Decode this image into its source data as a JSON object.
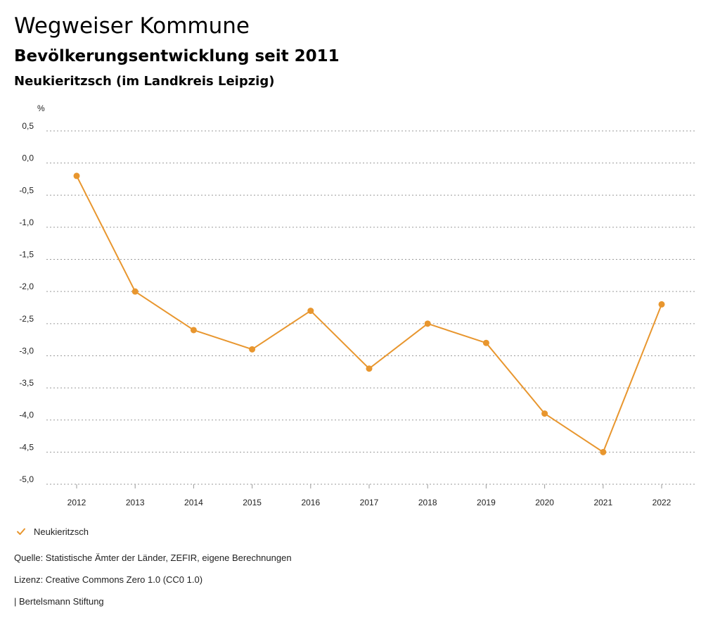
{
  "header": {
    "title": "Wegweiser Kommune",
    "subtitle": "Bevölkerungsentwicklung seit 2011",
    "region": "Neukieritzsch (im Landkreis Leipzig)"
  },
  "chart_data": {
    "type": "line",
    "title": "Bevölkerungsentwicklung seit 2011",
    "ylabel": "%",
    "xlabel": "",
    "x": [
      "2012",
      "2013",
      "2014",
      "2015",
      "2016",
      "2017",
      "2018",
      "2019",
      "2020",
      "2021",
      "2022"
    ],
    "series": [
      {
        "name": "Neukieritzsch",
        "color": "#e8962e",
        "values": [
          -0.2,
          -2.0,
          -2.6,
          -2.9,
          -2.3,
          -3.2,
          -2.5,
          -2.8,
          -3.9,
          -4.5,
          -2.2
        ]
      }
    ],
    "ylim": [
      -5.0,
      0.5
    ],
    "yticks": [
      0.5,
      0.0,
      -0.5,
      -1.0,
      -1.5,
      -2.0,
      -2.5,
      -3.0,
      -3.5,
      -4.0,
      -4.5,
      -5.0
    ],
    "ytick_labels": [
      "0,5",
      "0,0",
      "-0,5",
      "-1,0",
      "-1,5",
      "-2,0",
      "-2,5",
      "-3,0",
      "-3,5",
      "-4,0",
      "-4,5",
      "-5,0"
    ],
    "grid": true,
    "legend": "bottom-left"
  },
  "legend": {
    "icon": "check-icon",
    "label": "Neukieritzsch"
  },
  "footer": {
    "source": "Quelle: Statistische Ämter der Länder, ZEFIR, eigene Berechnungen",
    "license": "Lizenz: Creative Commons Zero 1.0 (CC0 1.0)",
    "publisher": "| Bertelsmann Stiftung"
  }
}
